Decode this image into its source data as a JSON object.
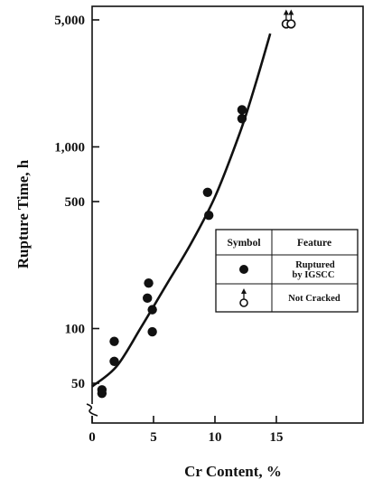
{
  "chart_data": {
    "type": "scatter",
    "title": "",
    "xlabel": "Cr Content,  %",
    "ylabel": "Rupture Time,  h",
    "xlim": [
      0,
      20
    ],
    "ylim": [
      35,
      5600
    ],
    "y_scale": "log",
    "x_ticks": [
      0,
      5,
      10,
      15
    ],
    "x_tick_labels": [
      "0",
      "5",
      "10",
      "15"
    ],
    "y_ticks": [
      50,
      100,
      500,
      1000,
      5000
    ],
    "y_tick_labels": [
      "50",
      "100",
      "500",
      "1,000",
      "5,000"
    ],
    "axis_break_on_y": true,
    "grid": false,
    "legend_position": "right-middle",
    "legend": {
      "header_symbol": "Symbol",
      "header_feature": "Feature",
      "entries": [
        {
          "marker": "filled-circle",
          "label_lines": [
            "Ruptured",
            "by IGSCC"
          ]
        },
        {
          "marker": "open-circle-arrow",
          "label_lines": [
            "Not Cracked"
          ]
        }
      ]
    },
    "series": [
      {
        "name": "Ruptured by IGSCC",
        "marker": "filled-circle",
        "color": "#111111",
        "points": [
          {
            "x": 0.8,
            "y": 46
          },
          {
            "x": 0.8,
            "y": 44
          },
          {
            "x": 1.8,
            "y": 85
          },
          {
            "x": 1.8,
            "y": 66
          },
          {
            "x": 4.6,
            "y": 178
          },
          {
            "x": 4.5,
            "y": 147
          },
          {
            "x": 4.9,
            "y": 127
          },
          {
            "x": 4.9,
            "y": 96
          },
          {
            "x": 9.4,
            "y": 562
          },
          {
            "x": 9.5,
            "y": 420
          },
          {
            "x": 12.2,
            "y": 1600
          },
          {
            "x": 12.2,
            "y": 1430
          }
        ]
      },
      {
        "name": "Not Cracked",
        "marker": "open-circle-arrow",
        "color": "#111111",
        "points": [
          {
            "x": 15.8,
            "y": 4750
          },
          {
            "x": 16.2,
            "y": 4750
          }
        ]
      }
    ],
    "trend_line": {
      "color": "#111111",
      "points": [
        [
          0,
          48
        ],
        [
          2,
          62
        ],
        [
          4,
          102
        ],
        [
          6,
          172
        ],
        [
          8,
          290
        ],
        [
          10,
          530
        ],
        [
          12,
          1180
        ],
        [
          13.2,
          2100
        ],
        [
          14.5,
          4200
        ]
      ]
    }
  }
}
